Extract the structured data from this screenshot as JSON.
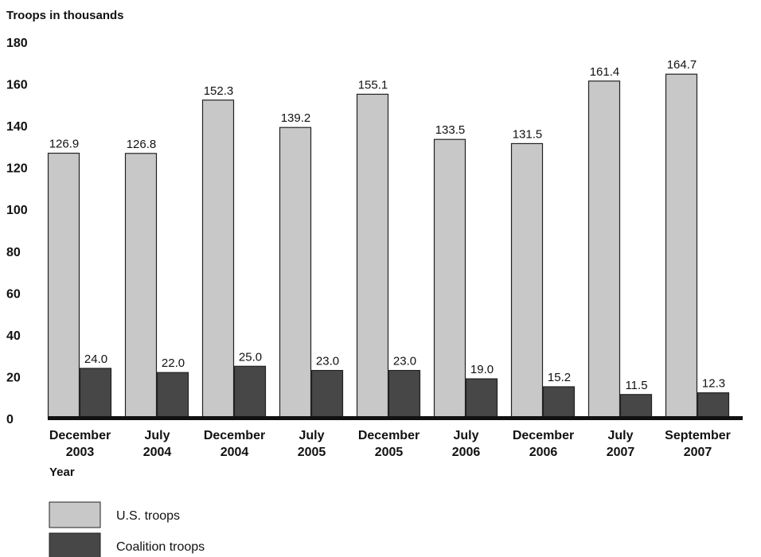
{
  "chart_data": {
    "type": "bar",
    "ylabel": "Troops in thousands",
    "xlabel": "Year",
    "categories": [
      [
        "December",
        "2003"
      ],
      [
        "July",
        "2004"
      ],
      [
        "December",
        "2004"
      ],
      [
        "July",
        "2005"
      ],
      [
        "December",
        "2005"
      ],
      [
        "July",
        "2006"
      ],
      [
        "December",
        "2006"
      ],
      [
        "July",
        "2007"
      ],
      [
        "September",
        "2007"
      ]
    ],
    "series": [
      {
        "name": "U.S. troops",
        "color": "#c8c8c8",
        "values": [
          126.9,
          126.8,
          152.3,
          139.2,
          155.1,
          133.5,
          131.5,
          161.4,
          164.7
        ]
      },
      {
        "name": "Coalition troops",
        "color": "#474747",
        "values": [
          24.0,
          22.0,
          25.0,
          23.0,
          23.0,
          19.0,
          15.2,
          11.5,
          12.3
        ]
      }
    ],
    "ylim": [
      0,
      180
    ],
    "yticks": [
      0,
      20,
      40,
      60,
      80,
      100,
      120,
      140,
      160,
      180
    ],
    "grid": false,
    "legend_position": "bottom-left"
  }
}
